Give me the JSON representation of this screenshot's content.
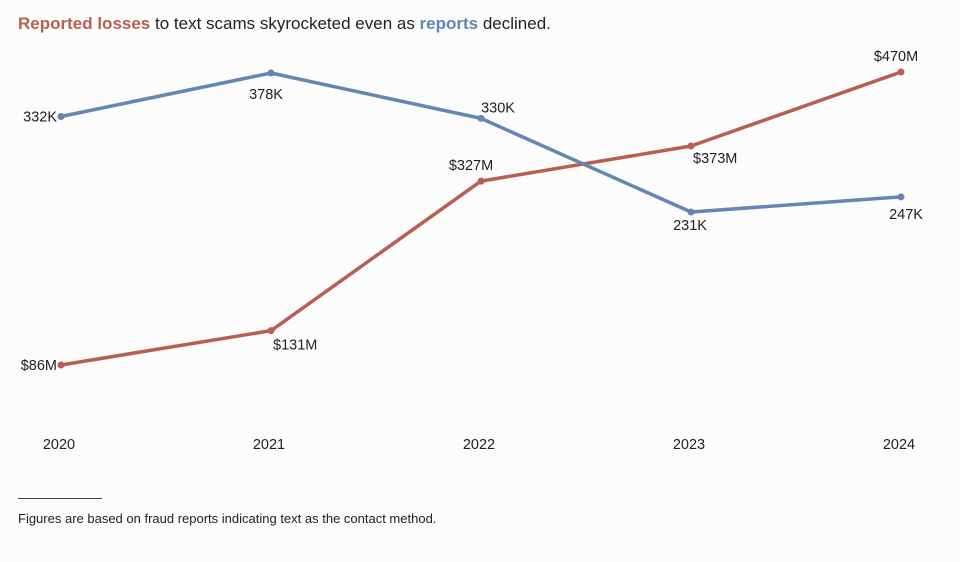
{
  "title": {
    "losses_label": "Reported losses",
    "mid": " to text scams skyrocketed even as ",
    "reports_label": "reports",
    "end": " declined."
  },
  "colors": {
    "losses": "#b8604f",
    "reports": "#6486b4"
  },
  "footnote": "Figures are based on fraud reports indicating text as the contact method.",
  "chart_data": {
    "type": "line",
    "title": "Reported losses to text scams skyrocketed even as reports declined.",
    "categories": [
      "2020",
      "2021",
      "2022",
      "2023",
      "2024"
    ],
    "xlabel": "",
    "ylabel": "",
    "series": [
      {
        "name": "Reported losses",
        "unit": "$M",
        "values": [
          86,
          131,
          327,
          373,
          470
        ],
        "labels": [
          "$86M",
          "$131M",
          "$327M",
          "$373M",
          "$470M"
        ],
        "color": "#b8604f"
      },
      {
        "name": "Reports",
        "unit": "K",
        "values": [
          332,
          378,
          330,
          231,
          247
        ],
        "labels": [
          "332K",
          "378K",
          "330K",
          "231K",
          "247K"
        ],
        "color": "#6486b4"
      }
    ],
    "grid": false,
    "legend": "inline in title"
  }
}
